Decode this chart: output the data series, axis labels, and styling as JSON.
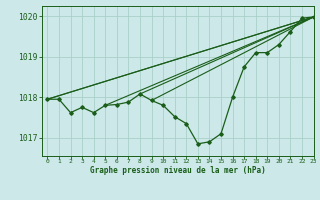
{
  "xlabel": "Graphe pression niveau de la mer (hPa)",
  "background_color": "#cce8e8",
  "grid_color": "#aad0c8",
  "line_color": "#1a5e1a",
  "xlim": [
    -0.5,
    23
  ],
  "ylim": [
    1016.55,
    1020.25
  ],
  "yticks": [
    1017,
    1018,
    1019,
    1020
  ],
  "xticks": [
    0,
    1,
    2,
    3,
    4,
    5,
    6,
    7,
    8,
    9,
    10,
    11,
    12,
    13,
    14,
    15,
    16,
    17,
    18,
    19,
    20,
    21,
    22,
    23
  ],
  "x": [
    0,
    1,
    2,
    3,
    4,
    5,
    6,
    7,
    8,
    9,
    10,
    11,
    12,
    13,
    14,
    15,
    16,
    17,
    18,
    19,
    20,
    21,
    22,
    23
  ],
  "y_main": [
    1017.95,
    1017.95,
    1017.62,
    1017.75,
    1017.62,
    1017.8,
    1017.82,
    1017.88,
    1018.08,
    1017.92,
    1017.8,
    1017.52,
    1017.35,
    1016.85,
    1016.9,
    1017.1,
    1018.0,
    1018.75,
    1019.1,
    1019.1,
    1019.3,
    1019.62,
    1019.95,
    1019.98
  ],
  "straight_lines": [
    [
      0,
      1017.95,
      23,
      1019.98
    ],
    [
      0,
      1017.95,
      23,
      1019.98
    ],
    [
      5,
      1017.8,
      23,
      1019.98
    ],
    [
      8,
      1018.08,
      23,
      1019.98
    ],
    [
      9,
      1017.92,
      23,
      1019.98
    ]
  ]
}
